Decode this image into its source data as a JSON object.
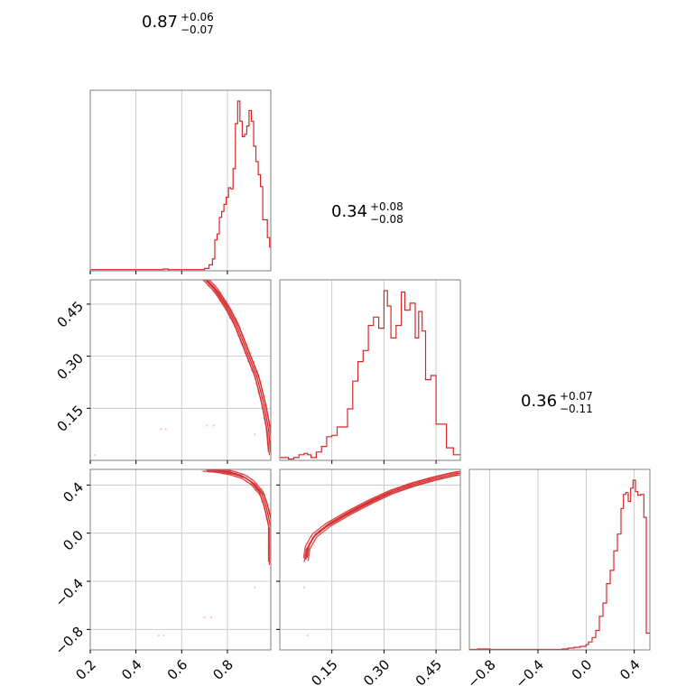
{
  "colors": {
    "series": "#d62728",
    "grid": "#c0c0c0",
    "frame": "#808080",
    "faint": "#f0a0a0"
  },
  "chart_data": {
    "type": "corner",
    "params": [
      {
        "name": "",
        "range": [
          0.2,
          0.99
        ],
        "ticks": [
          0.2,
          0.4,
          0.6,
          0.8
        ],
        "tick_labels": [
          "0.2",
          "0.4",
          "0.6",
          "0.8"
        ],
        "summary": {
          "median": "0.87",
          "plus": "+0.06",
          "minus": "−0.07"
        },
        "hist_edges": [
          0.2,
          0.52,
          0.54,
          0.7,
          0.72,
          0.735,
          0.745,
          0.755,
          0.765,
          0.775,
          0.785,
          0.795,
          0.805,
          0.815,
          0.825,
          0.835,
          0.845,
          0.855,
          0.865,
          0.875,
          0.885,
          0.895,
          0.905,
          0.915,
          0.925,
          0.935,
          0.945,
          0.955,
          0.965,
          0.975,
          0.985,
          0.99
        ],
        "hist_counts": [
          1,
          1.5,
          1,
          2,
          5,
          10,
          26,
          31,
          45,
          50,
          56,
          62,
          70,
          69,
          86,
          124,
          143,
          126,
          113,
          115,
          122,
          135,
          126,
          105,
          92,
          81,
          71,
          43,
          43,
          28,
          20
        ]
      },
      {
        "name": "",
        "range": [
          0.0,
          0.52
        ],
        "ticks": [
          0.15,
          0.3,
          0.45
        ],
        "tick_labels": [
          "0.15",
          "0.30",
          "0.45"
        ],
        "summary": {
          "median": "0.34",
          "plus": "+0.08",
          "minus": "−0.08"
        },
        "hist_edges": [
          0.0,
          0.025,
          0.04,
          0.055,
          0.07,
          0.08,
          0.09,
          0.105,
          0.12,
          0.135,
          0.15,
          0.165,
          0.18,
          0.195,
          0.21,
          0.225,
          0.24,
          0.255,
          0.27,
          0.285,
          0.3,
          0.31,
          0.32,
          0.335,
          0.35,
          0.36,
          0.375,
          0.39,
          0.4,
          0.41,
          0.42,
          0.435,
          0.45,
          0.465,
          0.48,
          0.5,
          0.52
        ],
        "hist_counts": [
          2,
          1,
          2,
          4,
          5,
          4,
          2,
          6,
          10,
          17,
          18,
          24,
          24,
          37,
          57,
          71,
          79,
          97,
          103,
          95,
          122,
          111,
          88,
          97,
          121,
          108,
          113,
          88,
          107,
          93,
          58,
          61,
          26,
          26,
          9,
          4
        ]
      },
      {
        "name": "",
        "range": [
          -0.97,
          0.53
        ],
        "ticks": [
          -0.8,
          -0.4,
          0.0,
          0.4
        ],
        "tick_labels": [
          "−0.8",
          "−0.4",
          "0.0",
          "0.4"
        ],
        "summary": {
          "median": "0.36",
          "plus": "+0.07",
          "minus": "−0.11"
        },
        "hist_edges": [
          -0.97,
          -0.9,
          -0.8,
          -0.2,
          -0.15,
          -0.1,
          -0.05,
          0.0,
          0.02,
          0.05,
          0.08,
          0.11,
          0.14,
          0.17,
          0.2,
          0.23,
          0.26,
          0.29,
          0.31,
          0.33,
          0.35,
          0.37,
          0.39,
          0.41,
          0.43,
          0.455,
          0.48,
          0.5,
          0.53
        ],
        "hist_counts": [
          0.5,
          1,
          0.5,
          1,
          2,
          3,
          4,
          6,
          9,
          14,
          22,
          38,
          53,
          75,
          90,
          112,
          131,
          160,
          176,
          178,
          168,
          183,
          192,
          179,
          175,
          176,
          150,
          19
        ]
      }
    ],
    "pairs": [
      {
        "x": 0,
        "y": 1,
        "curve": [
          [
            0.7,
            0.525
          ],
          [
            0.75,
            0.49
          ],
          [
            0.8,
            0.44
          ],
          [
            0.84,
            0.39
          ],
          [
            0.87,
            0.34
          ],
          [
            0.9,
            0.29
          ],
          [
            0.93,
            0.24
          ],
          [
            0.96,
            0.16
          ],
          [
            0.98,
            0.09
          ],
          [
            0.99,
            0.02
          ]
        ],
        "outliers": [
          [
            0.22,
            0.015
          ],
          [
            0.51,
            0.09
          ],
          [
            0.53,
            0.09
          ],
          [
            0.71,
            0.1
          ],
          [
            0.74,
            0.1
          ],
          [
            0.92,
            0.075
          ]
        ]
      },
      {
        "x": 0,
        "y": 2,
        "curve": [
          [
            0.7,
            0.53
          ],
          [
            0.76,
            0.52
          ],
          [
            0.82,
            0.5
          ],
          [
            0.87,
            0.47
          ],
          [
            0.91,
            0.42
          ],
          [
            0.95,
            0.33
          ],
          [
            0.97,
            0.22
          ],
          [
            0.99,
            0.05
          ],
          [
            0.99,
            -0.25
          ]
        ],
        "outliers": [
          [
            0.5,
            -0.85
          ],
          [
            0.52,
            -0.85
          ],
          [
            0.7,
            -0.7
          ],
          [
            0.73,
            -0.7
          ],
          [
            0.92,
            -0.45
          ]
        ]
      },
      {
        "x": 1,
        "y": 2,
        "curve": [
          [
            0.075,
            -0.22
          ],
          [
            0.08,
            -0.12
          ],
          [
            0.1,
            -0.02
          ],
          [
            0.14,
            0.07
          ],
          [
            0.2,
            0.17
          ],
          [
            0.26,
            0.26
          ],
          [
            0.32,
            0.34
          ],
          [
            0.38,
            0.4
          ],
          [
            0.44,
            0.45
          ],
          [
            0.5,
            0.49
          ],
          [
            0.52,
            0.5
          ]
        ],
        "outliers": [
          [
            0.07,
            -0.45
          ],
          [
            0.08,
            -0.85
          ]
        ]
      }
    ]
  }
}
